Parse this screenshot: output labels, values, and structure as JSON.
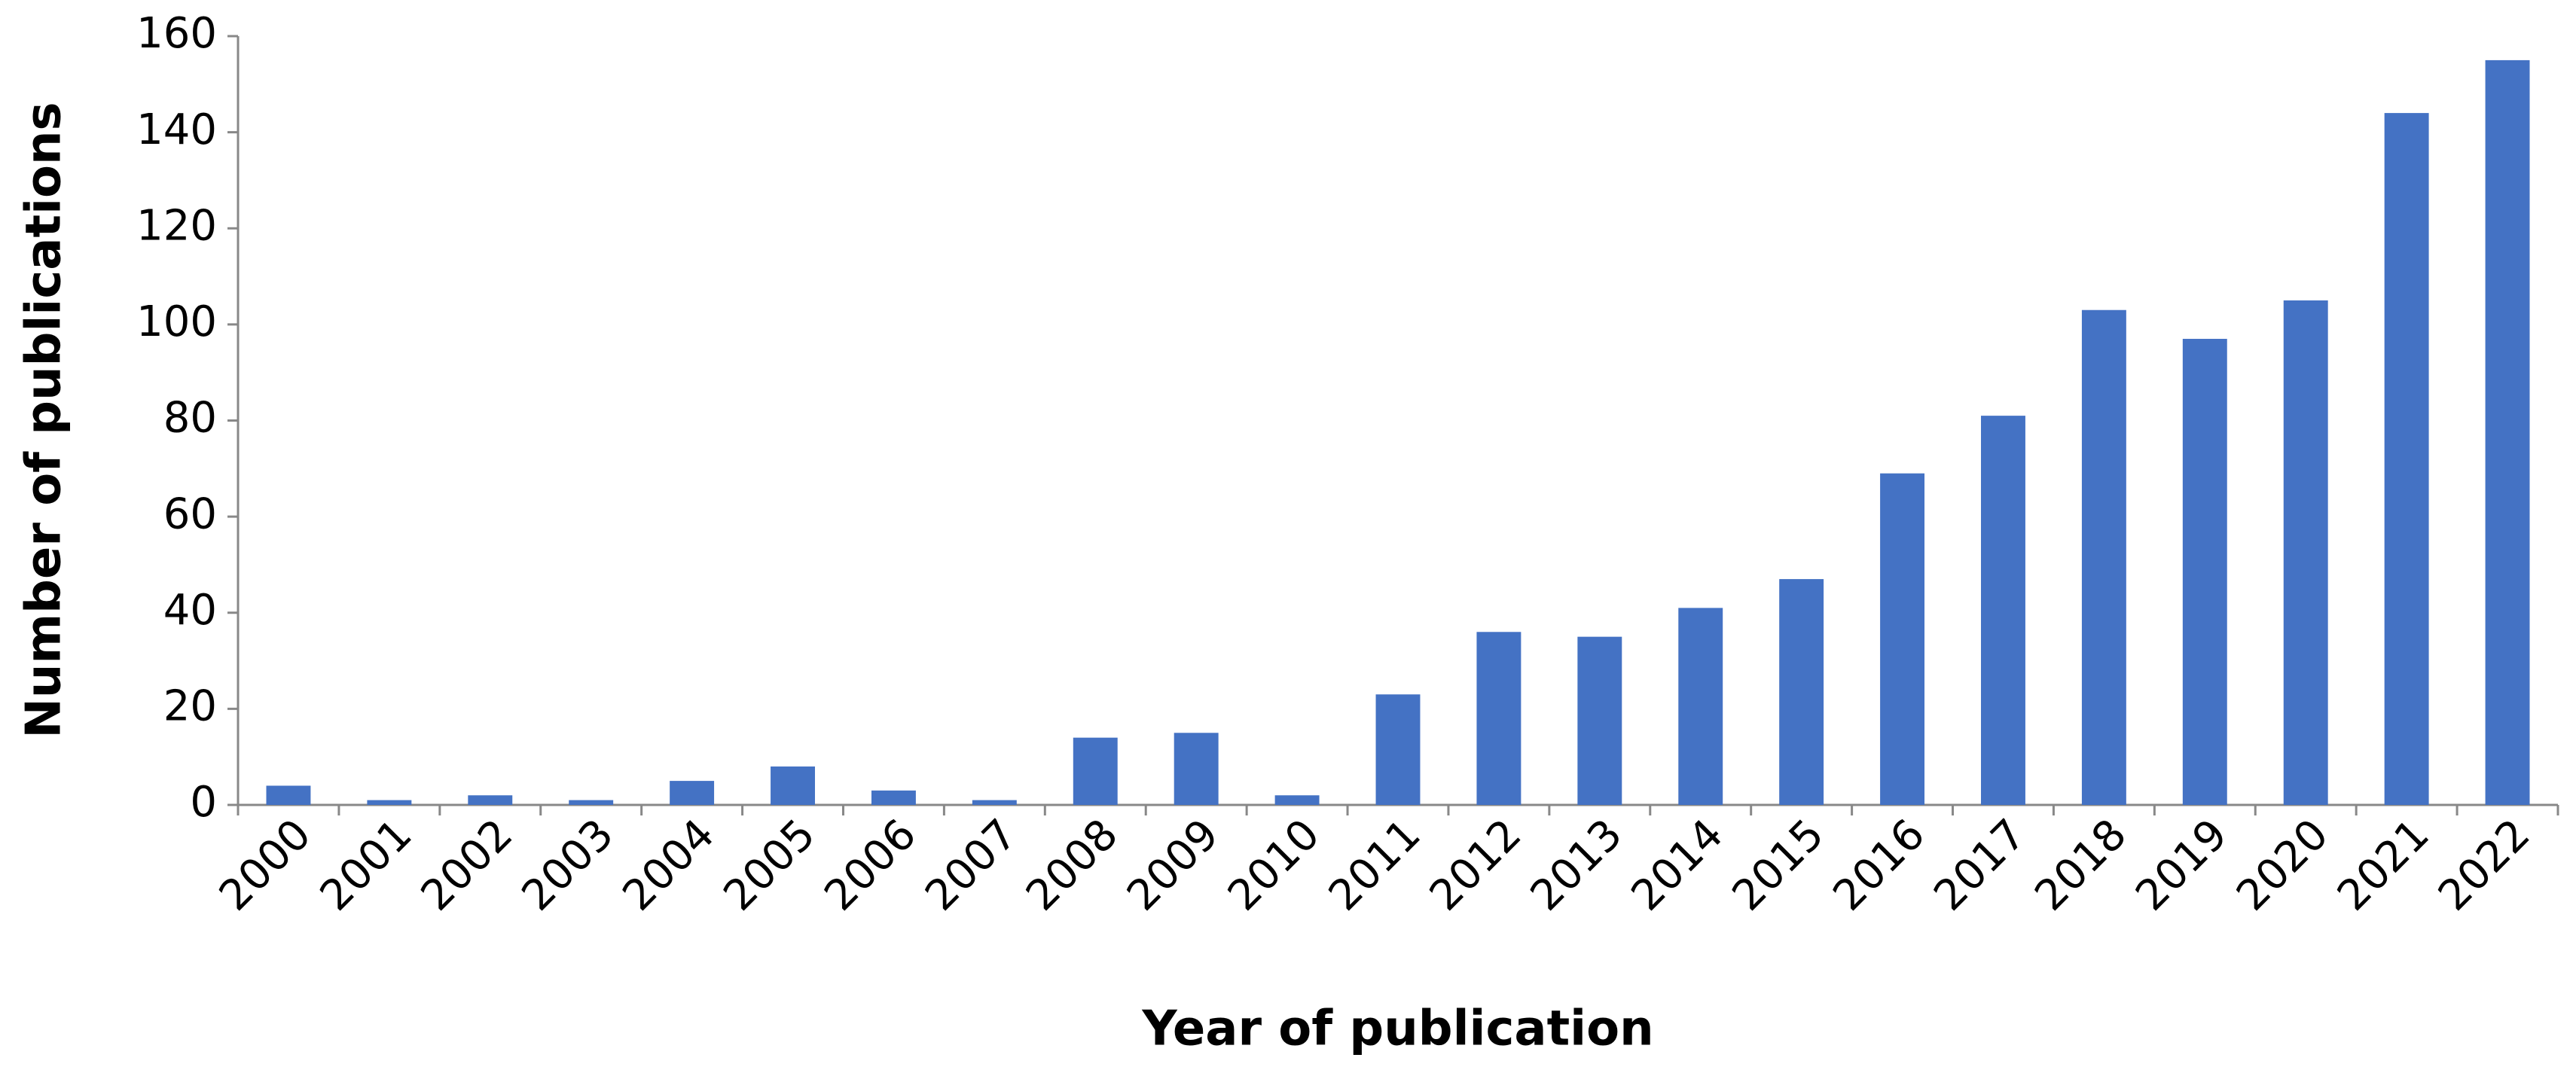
{
  "chart_data": {
    "type": "bar",
    "x_label": "Year of publication",
    "y_label": "Number of publications",
    "categories": [
      "2000",
      "2001",
      "2002",
      "2003",
      "2004",
      "2005",
      "2006",
      "2007",
      "2008",
      "2009",
      "2010",
      "2011",
      "2012",
      "2013",
      "2014",
      "2015",
      "2016",
      "2017",
      "2018",
      "2019",
      "2020",
      "2021",
      "2022"
    ],
    "values": [
      4,
      1,
      2,
      1,
      5,
      8,
      3,
      1,
      14,
      15,
      2,
      23,
      36,
      35,
      41,
      47,
      69,
      81,
      103,
      97,
      105,
      144,
      155
    ],
    "color": "#4472c4",
    "ylim": [
      0,
      160
    ],
    "yticks": [
      0,
      20,
      40,
      60,
      80,
      100,
      120,
      140,
      160
    ],
    "grid": false
  }
}
